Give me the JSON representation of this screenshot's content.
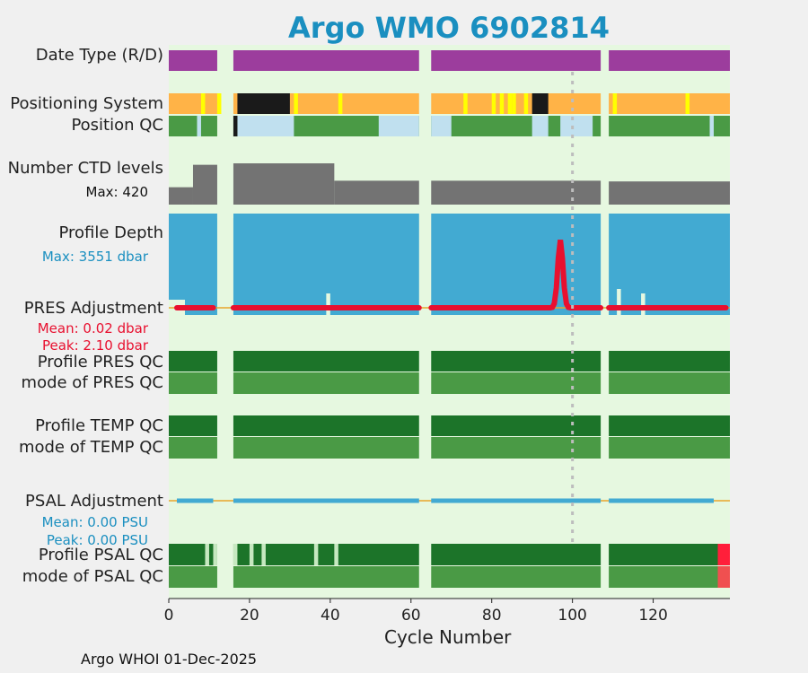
{
  "title": "Argo WMO 6902814",
  "footer": "Argo WHOI 01-Dec-2025",
  "colors": {
    "background": "#e6f8e0",
    "date_type": "#9c3d9d",
    "gps": "#ffb347",
    "argos_marker": "#ffff00",
    "iridium": "#1a1a1a",
    "qc_good": "#4a9a45",
    "qc_light": "#c0e0ef",
    "ctd": "#737373",
    "depth": "#42aad2",
    "pres_adjust": "#e8102f",
    "psal_adjust": "#42aad2",
    "qc_dark": "#1c7429",
    "qc_bad": "#ff1f3a"
  },
  "row_labels": {
    "date_type": "Date Type (R/D)",
    "positioning": "Positioning System",
    "position_qc": "Position QC",
    "ctd_levels": "Number CTD levels",
    "ctd_max": "Max: 420",
    "profile_depth": "Profile Depth",
    "depth_max": "Max: 3551 dbar",
    "pres_adjustment": "PRES Adjustment",
    "pres_mean": "Mean: 0.02 dbar",
    "pres_peak": "Peak: 2.10 dbar",
    "profile_pres_qc": "Profile PRES QC",
    "mode_pres_qc": "mode of PRES QC",
    "profile_temp_qc": "Profile TEMP QC",
    "mode_temp_qc": "mode of TEMP QC",
    "psal_adjustment": "PSAL Adjustment",
    "psal_mean": "Mean: 0.00 PSU",
    "psal_peak": "Peak: 0.00 PSU",
    "profile_psal_qc": "Profile PSAL QC",
    "mode_psal_qc": "mode of PSAL QC"
  },
  "chart_data": {
    "type": "heatmap",
    "xlabel": "Cycle Number",
    "xlim": [
      0,
      139
    ],
    "xticks": [
      0,
      20,
      40,
      60,
      80,
      100,
      120
    ],
    "xtick_labels": [
      "0",
      "20",
      "40",
      "60",
      "80",
      "100",
      "120"
    ],
    "reference_line_cycle": 100,
    "data_segments": [
      [
        0,
        12
      ],
      [
        16,
        62
      ],
      [
        65,
        107
      ],
      [
        109,
        139
      ]
    ],
    "positioning_system": {
      "gps_segments": [
        [
          0,
          12
        ],
        [
          16,
          62
        ],
        [
          65,
          107
        ],
        [
          109,
          139
        ]
      ],
      "argos_cycles": [
        8,
        12,
        31,
        42,
        73,
        80,
        82,
        84,
        85,
        88,
        110,
        128
      ],
      "iridium_segments": [
        [
          17,
          30
        ],
        [
          90,
          94
        ]
      ]
    },
    "position_qc_light_segments": [
      [
        7,
        8
      ],
      [
        17,
        31
      ],
      [
        52,
        62
      ],
      [
        65,
        70
      ],
      [
        90,
        94
      ],
      [
        97,
        105
      ],
      [
        134,
        135
      ]
    ],
    "ctd_levels_max": 420,
    "ctd_levels": [
      {
        "range": [
          0,
          6
        ],
        "value": 120
      },
      {
        "range": [
          6,
          12
        ],
        "value": 275
      },
      {
        "range": [
          16,
          41
        ],
        "value": 285
      },
      {
        "range": [
          41,
          62
        ],
        "value": 165
      },
      {
        "range": [
          65,
          107
        ],
        "value": 165
      },
      {
        "range": [
          109,
          139
        ],
        "value": 160
      }
    ],
    "profile_depth_max": 3551,
    "profile_depth_min_cycles": [
      {
        "cycle": 1,
        "value": 120
      },
      {
        "cycle": 39,
        "value": 180
      },
      {
        "cycle": 113,
        "value": 210
      }
    ],
    "pres_adjustment": {
      "mean": 0.02,
      "peak": 2.1,
      "peak_cycle": 97,
      "typical": 0.0
    },
    "pres_qc": "good",
    "temp_qc": "good",
    "psal_adjustment": {
      "mean": 0.0,
      "peak": 0.0
    },
    "psal_qc_light_cycles": [
      9,
      11,
      16,
      20,
      23,
      36,
      41
    ],
    "psal_qc_bad_segments": [
      [
        136,
        139
      ]
    ]
  }
}
